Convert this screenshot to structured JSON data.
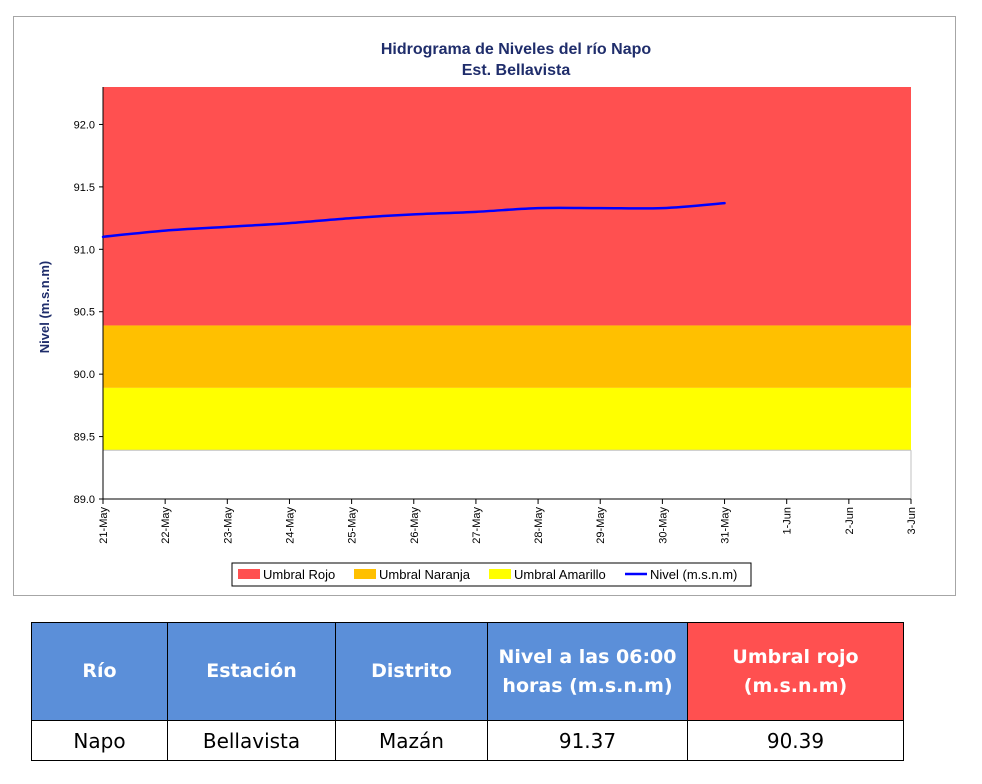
{
  "chart_data": {
    "type": "line",
    "title": "Hidrograma de Niveles del río Napo",
    "subtitle": "Est. Bellavista",
    "ylabel": "Nivel (m.s.n.m)",
    "xlabel": "",
    "ylim": [
      89.0,
      92.3
    ],
    "yticks": [
      "89.0",
      "89.5",
      "90.0",
      "90.5",
      "91.0",
      "91.5",
      "92.0"
    ],
    "x_categories": [
      "21-May",
      "22-May",
      "23-May",
      "24-May",
      "25-May",
      "26-May",
      "27-May",
      "28-May",
      "29-May",
      "30-May",
      "31-May",
      "1-Jun",
      "2-Jun",
      "3-Jun"
    ],
    "bands": [
      {
        "name": "Umbral Rojo",
        "from": 90.39,
        "to": 92.3,
        "color": "#ff5050"
      },
      {
        "name": "Umbral Naranja",
        "from": 89.89,
        "to": 90.39,
        "color": "#ffc000"
      },
      {
        "name": "Umbral Amarillo",
        "from": 89.39,
        "to": 89.89,
        "color": "#ffff00"
      }
    ],
    "series": [
      {
        "name": "Nivel (m.s.n.m)",
        "color": "#0000ff",
        "x": [
          "21-May",
          "22-May",
          "23-May",
          "24-May",
          "25-May",
          "26-May",
          "27-May",
          "28-May",
          "29-May",
          "30-May",
          "31-May"
        ],
        "values": [
          91.1,
          91.15,
          91.18,
          91.21,
          91.25,
          91.28,
          91.3,
          91.33,
          91.33,
          91.33,
          91.37
        ]
      }
    ],
    "legend": [
      "Umbral Rojo",
      "Umbral Naranja",
      "Umbral Amarillo",
      "Nivel (m.s.n.m)"
    ],
    "legend_position": "bottom",
    "grid": false
  },
  "table": {
    "headers": [
      "Río",
      "Estación",
      "Distrito",
      "Nivel a las 06:00 horas (m.s.n.m)",
      "Umbral rojo (m.s.n.m)"
    ],
    "row": [
      "Napo",
      "Bellavista",
      "Mazán",
      "91.37",
      "90.39"
    ]
  }
}
